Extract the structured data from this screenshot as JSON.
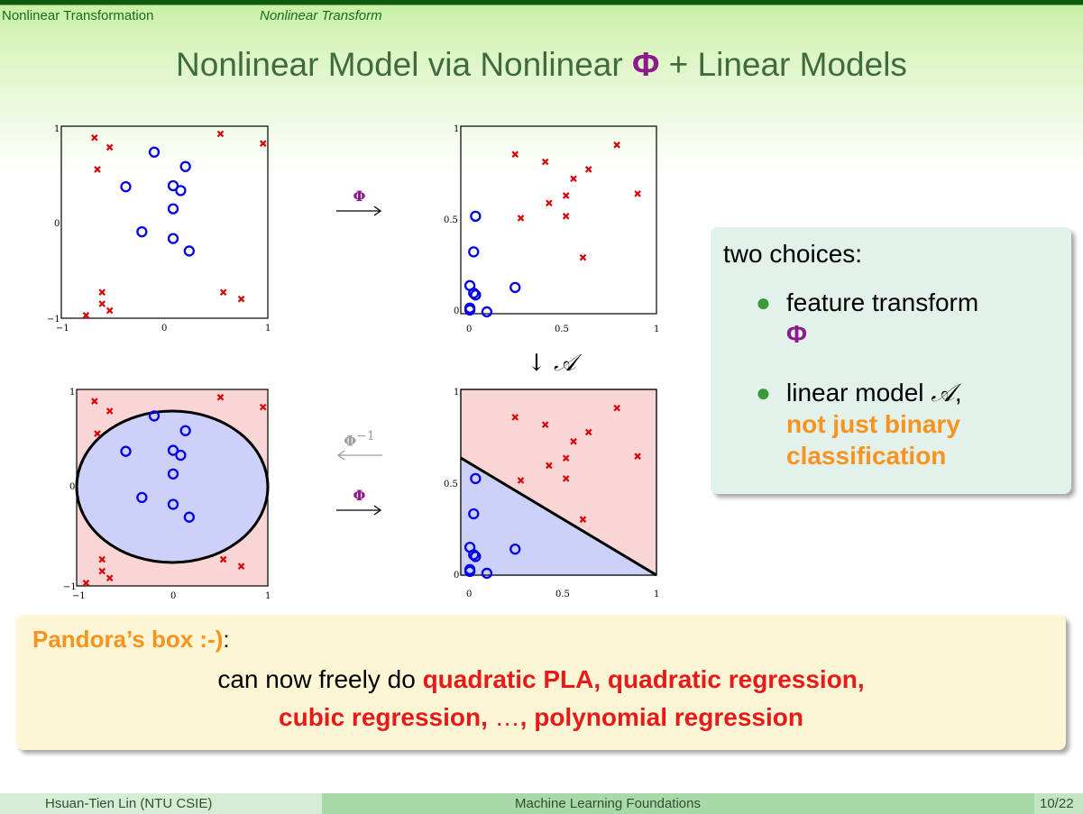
{
  "header": {
    "section": "Nonlinear Transformation",
    "subsection": "Nonlinear Transform"
  },
  "title": {
    "before": "Nonlinear Model via Nonlinear ",
    "phi": "Φ",
    "after": " + Linear Models"
  },
  "figures": {
    "arrow_right_symbol": "Φ",
    "arrow_inverse_symbol": "Φ",
    "arrow_inverse_exponent": "−1",
    "arrow_down_label": "↓ 𝒜",
    "circle_plot_ticks": {
      "x": [
        "−1",
        "0",
        "1"
      ],
      "y": [
        "−1",
        "0",
        "1"
      ]
    },
    "z_plot_ticks": {
      "x": [
        "0",
        "0.5",
        "1"
      ],
      "y": [
        "0",
        "0.5",
        "1"
      ]
    }
  },
  "chart_data": [
    {
      "type": "scatter",
      "title": "",
      "xlim": [
        -1,
        1
      ],
      "ylim": [
        -1,
        1
      ],
      "series": [
        {
          "marker": "o",
          "color": "#0000ee",
          "points": [
            [
              -0.2,
              0.73
            ],
            [
              0.13,
              0.58
            ],
            [
              -0.5,
              0.37
            ],
            [
              0,
              0.38
            ],
            [
              0.08,
              0.33
            ],
            [
              0,
              0.14
            ],
            [
              -0.33,
              -0.1
            ],
            [
              0,
              -0.17
            ],
            [
              0.17,
              -0.3
            ]
          ]
        },
        {
          "marker": "x",
          "color": "#dd0000",
          "points": [
            [
              -0.83,
              0.88
            ],
            [
              -0.67,
              0.78
            ],
            [
              -0.8,
              0.55
            ],
            [
              0.5,
              0.92
            ],
            [
              0.95,
              0.82
            ],
            [
              -0.75,
              -0.73
            ],
            [
              -0.75,
              -0.85
            ],
            [
              -0.67,
              -0.92
            ],
            [
              0.53,
              -0.73
            ],
            [
              0.72,
              -0.8
            ],
            [
              -0.92,
              -0.97
            ]
          ]
        }
      ],
      "boundary": "ellipse",
      "shading": {
        "inside": "#cdd0f8",
        "outside": "#f9d5d5"
      }
    },
    {
      "type": "scatter",
      "title": "",
      "xlim": [
        0,
        1
      ],
      "ylim": [
        0,
        1
      ],
      "series": [
        {
          "marker": "o",
          "color": "#0000ee",
          "points": [
            [
              0.04,
              0.52
            ],
            [
              0.03,
              0.33
            ],
            [
              0.01,
              0.15
            ],
            [
              0.03,
              0.11
            ],
            [
              0.04,
              0.1
            ],
            [
              0.01,
              0.03
            ],
            [
              0.01,
              0.02
            ],
            [
              0.1,
              0.01
            ],
            [
              0.25,
              0.14
            ]
          ]
        },
        {
          "marker": "x",
          "color": "#dd0000",
          "points": [
            [
              0.25,
              0.85
            ],
            [
              0.41,
              0.81
            ],
            [
              0.56,
              0.72
            ],
            [
              0.64,
              0.77
            ],
            [
              0.79,
              0.9
            ],
            [
              0.9,
              0.64
            ],
            [
              0.52,
              0.63
            ],
            [
              0.43,
              0.59
            ],
            [
              0.52,
              0.52
            ],
            [
              0.28,
              0.51
            ],
            [
              0.61,
              0.3
            ]
          ]
        }
      ],
      "boundary": {
        "type": "line",
        "from": [
          0,
          0.63
        ],
        "to": [
          1,
          0
        ]
      },
      "shading": {
        "below": "#cdd0f8",
        "above": "#f9d5d5"
      }
    }
  ],
  "choices": {
    "heading": "two choices:",
    "item1_text": "feature transform",
    "item1_symbol": "Φ",
    "item2_text_a": "linear model ",
    "item2_symbol": "𝒜",
    "item2_text_b": ",",
    "item2_emph_1": "not just binary",
    "item2_emph_2": "classification"
  },
  "pandora": {
    "heading": "Pandora’s box :-)",
    "heading_suffix": ":",
    "line1_prefix": "can now freely do ",
    "line1_emph": "quadratic PLA, quadratic regression,",
    "line2_emph_a": "cubic regression, ",
    "line2_dots": "…",
    "line2_emph_b": ", polynomial regression"
  },
  "footer": {
    "author": "Hsuan-Tien Lin  (NTU CSIE)",
    "course": "Machine Learning Foundations",
    "page": "10/22"
  },
  "colors": {
    "title": "#3f6b3f",
    "phi": "#8b1a8b",
    "orange": "#f7931e",
    "red": "#e8191a",
    "circle_marker": "#0000ee",
    "cross_marker": "#dd0000"
  }
}
